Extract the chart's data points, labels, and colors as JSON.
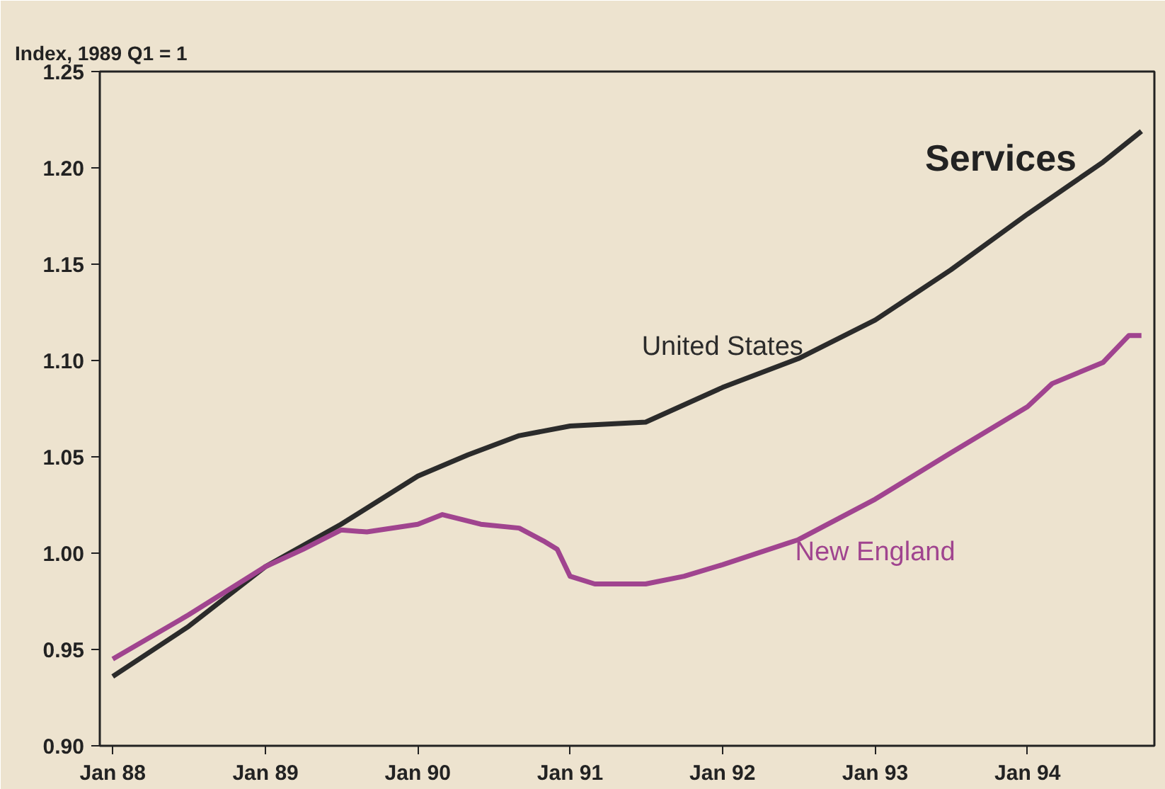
{
  "chart_data": {
    "type": "line",
    "title": "Services",
    "ylabel": "Index, 1989 Q1 = 1",
    "legend": false,
    "grid": false,
    "xlim": [
      "1987-12",
      "1994-11"
    ],
    "ylim": [
      0.9,
      1.25
    ],
    "xticks": [
      {
        "value": "1988-01",
        "label": "Jan 88"
      },
      {
        "value": "1989-01",
        "label": "Jan 89"
      },
      {
        "value": "1990-01",
        "label": "Jan 90"
      },
      {
        "value": "1991-01",
        "label": "Jan 91"
      },
      {
        "value": "1992-01",
        "label": "Jan 92"
      },
      {
        "value": "1993-01",
        "label": "Jan 93"
      },
      {
        "value": "1994-01",
        "label": "Jan 94"
      }
    ],
    "yticks": [
      {
        "value": 0.9,
        "label": "0.90"
      },
      {
        "value": 0.95,
        "label": "0.95"
      },
      {
        "value": 1.0,
        "label": "1.00"
      },
      {
        "value": 1.05,
        "label": "1.05"
      },
      {
        "value": 1.1,
        "label": "1.10"
      },
      {
        "value": 1.15,
        "label": "1.15"
      },
      {
        "value": 1.2,
        "label": "1.20"
      },
      {
        "value": 1.25,
        "label": "1.25"
      }
    ],
    "series": [
      {
        "name": "United States",
        "color": "#2b2b2b",
        "x": [
          "1988-01",
          "1988-07",
          "1989-01",
          "1989-07",
          "1990-01",
          "1990-05",
          "1990-09",
          "1991-01",
          "1991-07",
          "1992-01",
          "1992-07",
          "1993-01",
          "1993-07",
          "1994-01",
          "1994-07",
          "1994-10"
        ],
        "values": [
          0.936,
          0.962,
          0.993,
          1.015,
          1.04,
          1.051,
          1.061,
          1.066,
          1.068,
          1.086,
          1.101,
          1.121,
          1.147,
          1.176,
          1.203,
          1.219
        ]
      },
      {
        "name": "New England",
        "color": "#a0448f",
        "x": [
          "1988-01",
          "1988-07",
          "1989-01",
          "1989-04",
          "1989-07",
          "1989-09",
          "1990-01",
          "1990-03",
          "1990-06",
          "1990-09",
          "1990-11",
          "1990-12",
          "1991-01",
          "1991-03",
          "1991-07",
          "1991-10",
          "1992-01",
          "1992-07",
          "1993-01",
          "1993-07",
          "1994-01",
          "1994-03",
          "1994-07",
          "1994-09",
          "1994-10"
        ],
        "values": [
          0.945,
          0.968,
          0.993,
          1.002,
          1.012,
          1.011,
          1.015,
          1.02,
          1.015,
          1.013,
          1.006,
          1.002,
          0.988,
          0.984,
          0.984,
          0.988,
          0.994,
          1.007,
          1.028,
          1.052,
          1.076,
          1.088,
          1.099,
          1.113,
          1.113
        ]
      }
    ]
  }
}
